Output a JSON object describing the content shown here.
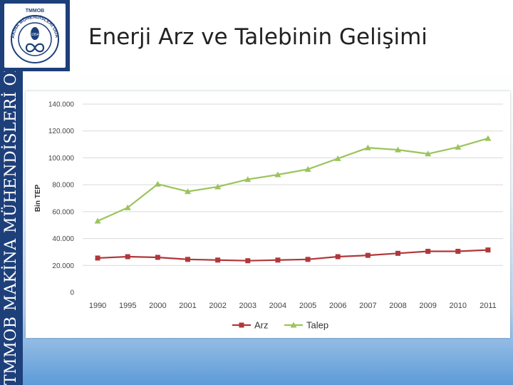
{
  "slide": {
    "title": "Enerji Arz ve Talebinin Gelişimi",
    "side_banner": "TMMOB MAKİNA MÜHENDİSLERİ ODASI",
    "logo_text_top": "TMMOB",
    "logo_text_ring": "MAKİNA MÜHENDİSLERİ ODASI",
    "logo_inner_text": "1954"
  },
  "colors": {
    "banner": "#1d3f7a",
    "arz": "#b0373a",
    "talep": "#9bc45a",
    "grid": "#d9d9d9",
    "axis_text": "#444444"
  },
  "chart_data": {
    "type": "line",
    "title": "",
    "xlabel": "",
    "ylabel": "Bin TEP",
    "categories": [
      "1990",
      "1995",
      "2000",
      "2001",
      "2002",
      "2003",
      "2004",
      "2005",
      "2006",
      "2007",
      "2008",
      "2009",
      "2010",
      "2011"
    ],
    "ylim": [
      0,
      140000
    ],
    "yticks": [
      0,
      20000,
      40000,
      60000,
      80000,
      100000,
      120000,
      140000
    ],
    "ytick_labels": [
      "0",
      "20.000",
      "40.000",
      "60.000",
      "80.000",
      "100.000",
      "120.000",
      "140.000"
    ],
    "grid": true,
    "legend_position": "bottom",
    "series": [
      {
        "name": "Arz",
        "marker": "square",
        "color": "#b0373a",
        "values": [
          25500,
          26500,
          26000,
          24500,
          24000,
          23500,
          24000,
          24500,
          26500,
          27500,
          29000,
          30500,
          30500,
          31500
        ]
      },
      {
        "name": "Talep",
        "marker": "triangle",
        "color": "#9bc45a",
        "values": [
          53000,
          63000,
          80500,
          75000,
          78500,
          84000,
          87500,
          91500,
          99500,
          107500,
          106000,
          103000,
          108000,
          114500
        ]
      }
    ]
  }
}
